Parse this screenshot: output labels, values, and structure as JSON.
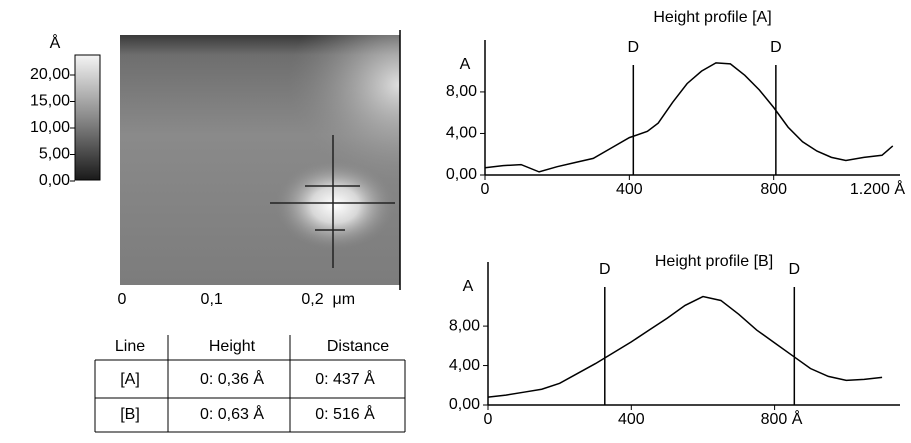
{
  "afm_image": {
    "colorbar": {
      "unit": "Å",
      "ticks": [
        {
          "value": 20,
          "label": "20,00"
        },
        {
          "value": 15,
          "label": "15,00"
        },
        {
          "value": 10,
          "label": "10,00"
        },
        {
          "value": 5,
          "label": "5,00"
        },
        {
          "value": 0,
          "label": "0,00"
        }
      ]
    },
    "xlim": [
      0,
      0.31
    ],
    "xticks": [
      {
        "value": 0,
        "label": "0"
      },
      {
        "value": 0.1,
        "label": "0,1"
      },
      {
        "value": 0.2,
        "label": "0,2  μm"
      }
    ]
  },
  "table": {
    "header": [
      "Line",
      "Height",
      "Distance"
    ],
    "rows": [
      [
        "[A]",
        "0: 0,36 Å",
        "0: 437 Å"
      ],
      [
        "[B]",
        "0: 0,63 Å",
        "0: 516 Å"
      ]
    ]
  },
  "chart_data": [
    {
      "type": "line",
      "title": "Height profile [A]",
      "ylabel": "A",
      "x": [
        0,
        50,
        100,
        150,
        200,
        250,
        300,
        350,
        400,
        450,
        480,
        520,
        560,
        600,
        640,
        680,
        720,
        760,
        800,
        840,
        880,
        920,
        960,
        1000,
        1050,
        1100,
        1130
      ],
      "series": [
        {
          "color": "#000000",
          "values": [
            0.7,
            0.9,
            1.0,
            0.3,
            0.8,
            1.2,
            1.6,
            2.6,
            3.6,
            4.2,
            5.0,
            7.0,
            8.8,
            10.0,
            10.8,
            10.7,
            9.6,
            8.2,
            6.5,
            4.6,
            3.2,
            2.3,
            1.7,
            1.4,
            1.7,
            1.9,
            2.8
          ]
        }
      ],
      "xlim": [
        0,
        1150
      ],
      "xticks": [
        0,
        400,
        800,
        {
          "value": 1200,
          "label": "1.200 Å"
        }
      ],
      "ylim": [
        0,
        13
      ],
      "yticks": [
        {
          "value": 0,
          "label": "0,00"
        },
        {
          "value": 4,
          "label": "4,00"
        },
        {
          "value": 8,
          "label": "8,00"
        }
      ],
      "markers": [
        {
          "label": "D",
          "x": 411
        },
        {
          "label": "D",
          "x": 806
        }
      ]
    },
    {
      "type": "line",
      "title": "Height profile [B]",
      "ylabel": "A",
      "x": [
        0,
        50,
        100,
        150,
        200,
        250,
        300,
        350,
        400,
        450,
        500,
        550,
        600,
        650,
        700,
        750,
        800,
        850,
        900,
        950,
        1000,
        1050,
        1100
      ],
      "series": [
        {
          "color": "#000000",
          "values": [
            0.8,
            1.0,
            1.3,
            1.6,
            2.2,
            3.2,
            4.2,
            5.3,
            6.4,
            7.6,
            8.8,
            10.1,
            11.0,
            10.6,
            9.2,
            7.6,
            6.3,
            5.0,
            3.7,
            2.9,
            2.5,
            2.6,
            2.8
          ]
        }
      ],
      "xlim": [
        0,
        1150
      ],
      "xticks": [
        0,
        400,
        {
          "value": 800,
          "label": "800 Å"
        }
      ],
      "ylim": [
        0,
        14.5
      ],
      "yticks": [
        {
          "value": 0,
          "label": "0,00"
        },
        {
          "value": 4,
          "label": "4,00"
        },
        {
          "value": 8,
          "label": "8,00"
        }
      ],
      "markers": [
        {
          "label": "D",
          "x": 326
        },
        {
          "label": "D",
          "x": 855
        }
      ]
    }
  ]
}
